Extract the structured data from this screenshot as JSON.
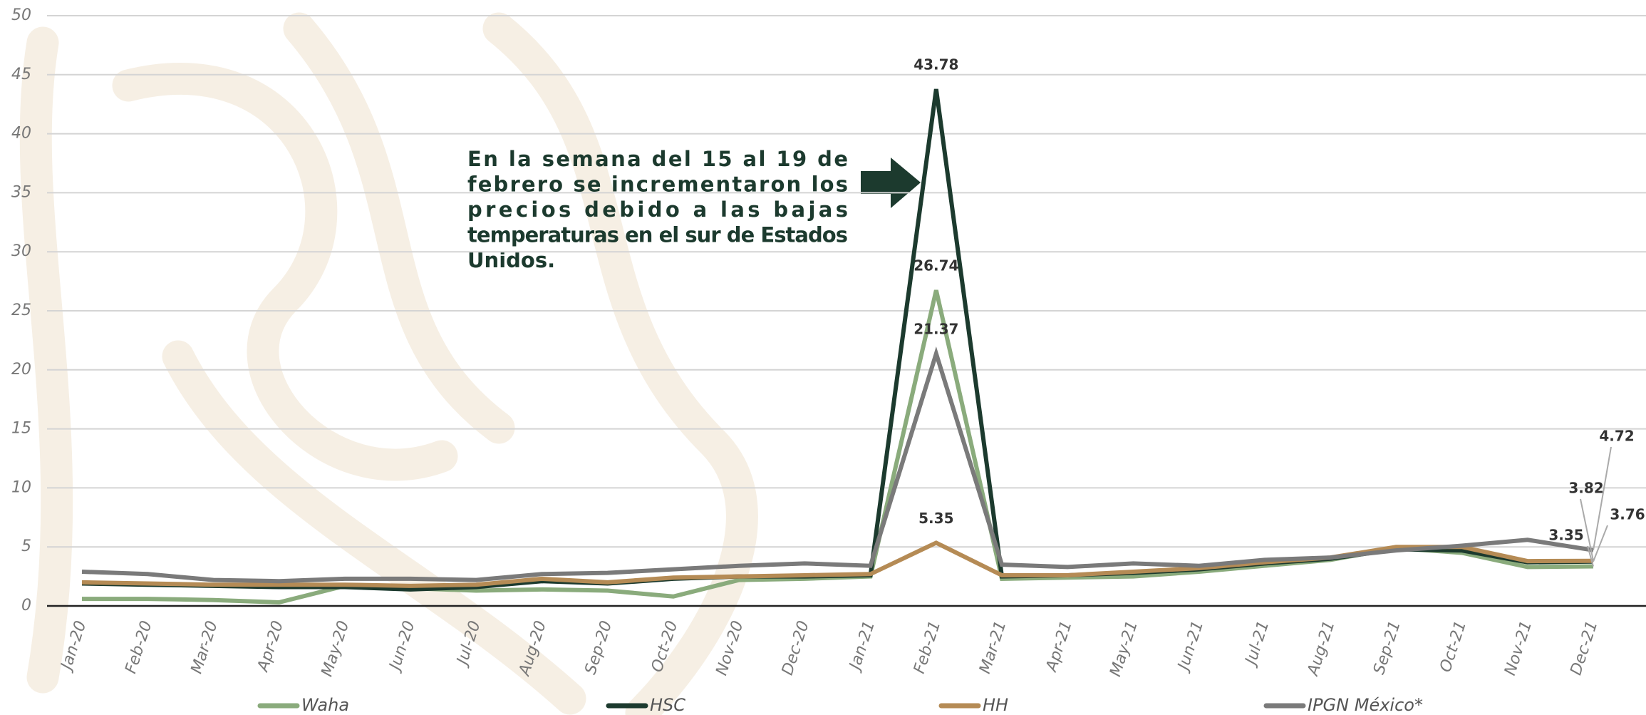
{
  "chart_data": {
    "type": "line",
    "annotation": [
      "En la semana del 15 al 19 de",
      "febrero se incrementaron los",
      "precios debido a las bajas",
      "temperaturas en el sur de Estados",
      "Unidos."
    ],
    "categories": [
      "Jan-20",
      "Feb-20",
      "Mar-20",
      "Apr-20",
      "May-20",
      "Jun-20",
      "Jul-20",
      "Aug-20",
      "Sep-20",
      "Oct-20",
      "Nov-20",
      "Dec-20",
      "Jan-21",
      "Feb-21",
      "Mar-21",
      "Apr-21",
      "May-21",
      "Jun-21",
      "Jul-21",
      "Aug-21",
      "Sep-21",
      "Oct-21",
      "Nov-21",
      "Dec-21"
    ],
    "series": [
      {
        "name": "Waha",
        "color": "#8aab7c",
        "values": [
          0.6,
          0.6,
          0.5,
          0.3,
          1.7,
          1.5,
          1.3,
          1.4,
          1.3,
          0.8,
          2.2,
          2.3,
          2.5,
          26.74,
          2.3,
          2.4,
          2.5,
          2.9,
          3.4,
          3.9,
          4.9,
          4.5,
          3.3,
          3.35
        ]
      },
      {
        "name": "HSC",
        "color": "#1c3a2e",
        "values": [
          1.9,
          1.8,
          1.7,
          1.6,
          1.6,
          1.4,
          1.6,
          2.1,
          1.9,
          2.3,
          2.5,
          2.5,
          2.6,
          43.78,
          2.5,
          2.6,
          2.8,
          3.1,
          3.6,
          4.0,
          4.8,
          4.7,
          3.7,
          3.76
        ]
      },
      {
        "name": "HH",
        "color": "#b58b55",
        "values": [
          2.0,
          1.9,
          1.8,
          1.8,
          1.8,
          1.7,
          1.8,
          2.3,
          2.0,
          2.4,
          2.5,
          2.6,
          2.7,
          5.35,
          2.6,
          2.6,
          2.9,
          3.2,
          3.7,
          4.1,
          5.0,
          5.0,
          3.8,
          3.82
        ]
      },
      {
        "name": "IPGN México*",
        "color": "#7a7a7a",
        "values": [
          2.9,
          2.7,
          2.2,
          2.1,
          2.3,
          2.3,
          2.2,
          2.7,
          2.8,
          3.1,
          3.4,
          3.6,
          3.4,
          21.37,
          3.5,
          3.3,
          3.6,
          3.4,
          3.9,
          4.1,
          4.7,
          5.1,
          5.6,
          4.72
        ]
      }
    ],
    "ylim": [
      0,
      50
    ],
    "yticks": [
      0,
      5,
      10,
      15,
      20,
      25,
      30,
      35,
      40,
      45,
      50
    ],
    "grid": true
  }
}
